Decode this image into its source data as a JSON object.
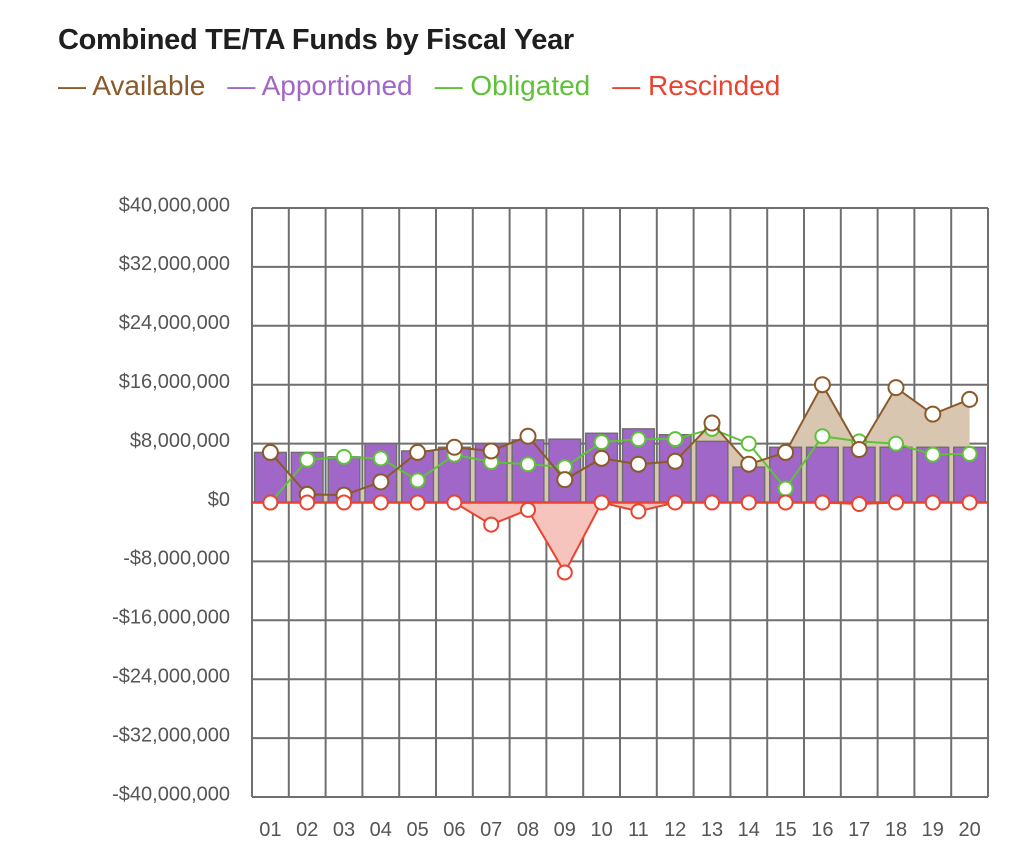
{
  "chart_data": {
    "type": "bar+line",
    "title": "Combined TE/TA Funds by Fiscal Year",
    "categories": [
      "01",
      "02",
      "03",
      "04",
      "05",
      "06",
      "07",
      "08",
      "09",
      "10",
      "11",
      "12",
      "13",
      "14",
      "15",
      "16",
      "17",
      "18",
      "19",
      "20"
    ],
    "ylim": [
      -40000000,
      40000000
    ],
    "yticks": [
      {
        "value": 40000000,
        "label": "$40,000,000"
      },
      {
        "value": 32000000,
        "label": "$32,000,000"
      },
      {
        "value": 24000000,
        "label": "$24,000,000"
      },
      {
        "value": 16000000,
        "label": "$16,000,000"
      },
      {
        "value": 8000000,
        "label": "$8,000,000"
      },
      {
        "value": 0,
        "label": "$0"
      },
      {
        "value": -8000000,
        "label": "-$8,000,000"
      },
      {
        "value": -16000000,
        "label": "-$16,000,000"
      },
      {
        "value": -24000000,
        "label": "-$24,000,000"
      },
      {
        "value": -32000000,
        "label": "-$32,000,000"
      },
      {
        "value": -40000000,
        "label": "-$40,000,000"
      }
    ],
    "grid": true,
    "legend_position": "top-left",
    "series": [
      {
        "name": "Available",
        "type": "line",
        "fill": true,
        "color": "#8b5a2b",
        "fill_color": "#d9c6b0",
        "values": [
          6800000,
          1100000,
          1000000,
          2800000,
          6800000,
          7500000,
          7000000,
          9000000,
          3100000,
          6000000,
          5200000,
          5600000,
          10800000,
          5200000,
          6800000,
          16000000,
          7200000,
          15600000,
          12000000,
          14000000
        ]
      },
      {
        "name": "Apportioned",
        "type": "bar",
        "color": "#a066c8",
        "values": [
          6800000,
          6800000,
          6200000,
          8000000,
          7000000,
          7500000,
          8000000,
          8500000,
          8600000,
          9400000,
          10000000,
          9200000,
          8300000,
          4800000,
          7500000,
          7500000,
          7500000,
          7500000,
          7500000,
          7500000
        ]
      },
      {
        "name": "Obligated",
        "type": "line",
        "fill": false,
        "color": "#5ec238",
        "values": [
          0,
          5800000,
          6200000,
          6000000,
          3000000,
          6500000,
          5500000,
          5200000,
          4800000,
          8200000,
          8600000,
          8600000,
          10000000,
          8000000,
          1900000,
          9000000,
          8300000,
          8000000,
          6500000,
          6600000
        ]
      },
      {
        "name": "Rescinded",
        "type": "line",
        "fill": true,
        "color": "#e8442f",
        "fill_color": "#f7c3bd",
        "values": [
          0,
          0,
          0,
          0,
          0,
          0,
          -3000000,
          -1000000,
          -9500000,
          0,
          -1200000,
          0,
          0,
          0,
          0,
          0,
          -200000,
          0,
          0,
          0
        ]
      }
    ]
  }
}
